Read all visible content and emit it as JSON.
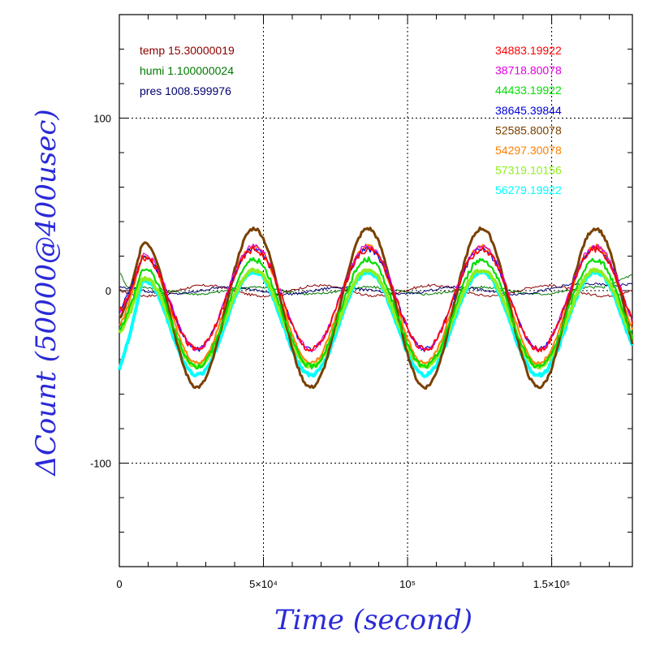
{
  "chart_data": {
    "type": "line",
    "xlabel": "Time (second)",
    "ylabel": "ΔCount (50000@400usec)",
    "xlim": [
      0,
      178000
    ],
    "ylim": [
      -160,
      160
    ],
    "x_ticks": [
      {
        "value": 0,
        "label": "0"
      },
      {
        "value": 50000,
        "label": "5×10⁴"
      },
      {
        "value": 100000,
        "label": "10⁵"
      },
      {
        "value": 150000,
        "label": "1.5×10⁵"
      }
    ],
    "y_ticks": [
      {
        "value": 100,
        "label": "100"
      },
      {
        "value": 0,
        "label": "0"
      },
      {
        "value": -100,
        "label": "-100"
      }
    ],
    "grid": true,
    "env_legend": [
      {
        "label": "temp",
        "value": "15.30000019",
        "color": "#8b0000"
      },
      {
        "label": "humi",
        "value": "1.100000024",
        "color": "#007a00"
      },
      {
        "label": "pres",
        "value": "1008.599976",
        "color": "#00006e"
      }
    ],
    "series": [
      {
        "name": "34883.19922",
        "color": "#ff0000",
        "amplitude": 29,
        "offset": -5,
        "noise": 2,
        "start": -12,
        "width": 1.6
      },
      {
        "name": "38718.80078",
        "color": "#e000e0",
        "amplitude": 30,
        "offset": -4,
        "noise": 1.5,
        "start": -14,
        "width": 1.2
      },
      {
        "name": "44433.19922",
        "color": "#00dd00",
        "amplitude": 31,
        "offset": -13,
        "noise": 1.5,
        "start": -22,
        "width": 2.2
      },
      {
        "name": "38645.39844",
        "color": "#0000dd",
        "amplitude": 29,
        "offset": -5,
        "noise": 1.5,
        "start": -10,
        "width": 1.2
      },
      {
        "name": "52585.80078",
        "color": "#7a4000",
        "amplitude": 46,
        "offset": -10,
        "noise": 1,
        "start": -16,
        "width": 3
      },
      {
        "name": "54297.30078",
        "color": "#ff8000",
        "amplitude": 34,
        "offset": -8,
        "noise": 1,
        "start": -20,
        "width": 2
      },
      {
        "name": "57319.10156",
        "color": "#90ee20",
        "amplitude": 28,
        "offset": -16,
        "noise": 1,
        "start": -24,
        "width": 4
      },
      {
        "name": "56279.19922",
        "color": "#00ffff",
        "amplitude": 30,
        "offset": -19,
        "noise": 1,
        "start": -45,
        "width": 4
      }
    ],
    "env_series": [
      {
        "name": "temp",
        "color": "#8b0000",
        "amplitude": 3,
        "phase": 3.1
      },
      {
        "name": "humi",
        "color": "#007a00",
        "amplitude": 2,
        "phase": 0.4
      },
      {
        "name": "pres",
        "color": "#00006e",
        "amplitude": 2,
        "phase": 1.8
      }
    ]
  }
}
